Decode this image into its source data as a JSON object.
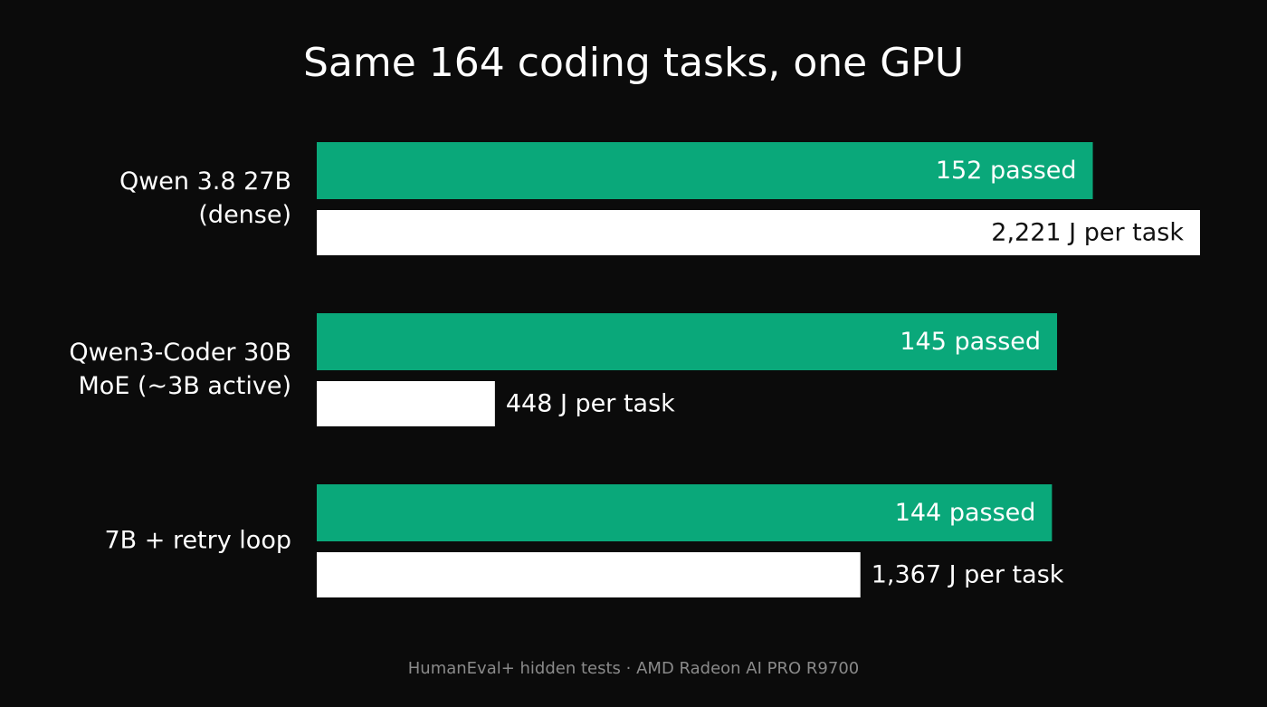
{
  "chart_data": {
    "type": "hbar-grouped",
    "title": "Same 164 coding tasks, one GPU",
    "footnote": "HumanEval+ hidden tests · AMD Radeon AI PRO R9700",
    "categories": [
      [
        "Qwen 3.8 27B",
        "(dense)"
      ],
      [
        "Qwen3-Coder 30B",
        "MoE (~3B active)"
      ],
      [
        "7B + retry loop"
      ]
    ],
    "series": [
      {
        "color": "#0aa87a",
        "label_color": "#ffffff",
        "xlim": [
          0,
          173
        ],
        "values": [
          152,
          145,
          144
        ],
        "value_labels": [
          "152 passed",
          "145 passed",
          "144 passed"
        ]
      },
      {
        "color": "#ffffff",
        "label_color": "#111111",
        "xlim": [
          0,
          2221
        ],
        "values": [
          2221,
          448,
          1367
        ],
        "value_labels": [
          "2,221 J per task",
          "448 J per task",
          "1,367 J per task"
        ]
      }
    ]
  }
}
